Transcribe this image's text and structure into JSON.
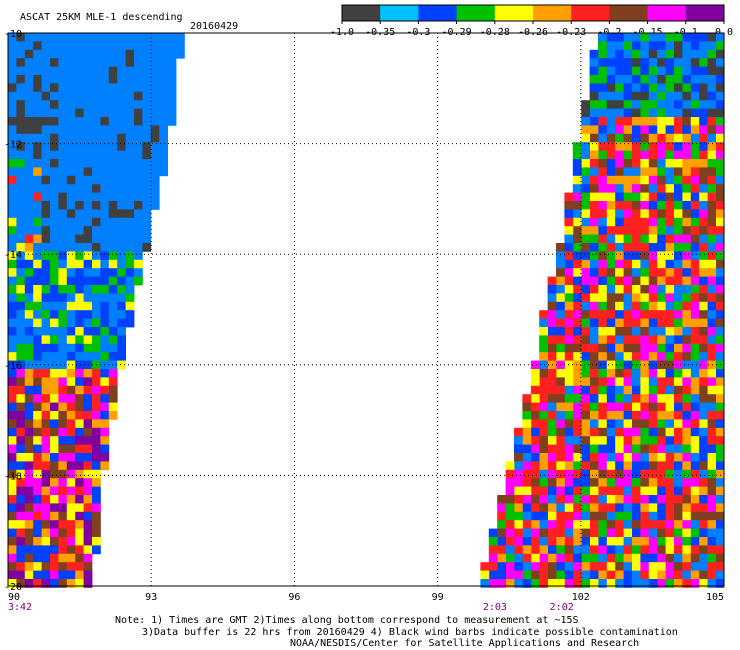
{
  "header": {
    "title": "ASCAT 25KM MLE-1 descending",
    "date": "20160429"
  },
  "legend": {
    "colors": [
      "#404040",
      "#00c0ff",
      "#0040ff",
      "#00c000",
      "#ffff00",
      "#ffa000",
      "#ff2020",
      "#804020",
      "#ff00ff",
      "#8000a0"
    ],
    "tick_labels": [
      "-1.0",
      "-0.35",
      "-0.3",
      "-0.29",
      "-0.28",
      "-0.26",
      "-0.23",
      "-0.2",
      "-0.15",
      "-0.1",
      "0.0"
    ]
  },
  "map": {
    "lon_labels": [
      "90",
      "93",
      "96",
      "99",
      "102",
      "105"
    ],
    "lat_labels": [
      "-10",
      "-12",
      "-14",
      "-16",
      "-18",
      "-20"
    ],
    "time_labels": [
      {
        "text": "3:42",
        "lon": 90.0
      },
      {
        "text": "2:03",
        "lon": 100.2
      },
      {
        "text": "2:02",
        "lon": 101.6
      }
    ],
    "lon_range": [
      90,
      105
    ],
    "lat_range": [
      -20,
      -10
    ],
    "grid": true,
    "swaths": [
      {
        "name": "west",
        "lon_min": 90,
        "lat_edge": [
          [
            -10,
            93.6
          ],
          [
            -11,
            93.4
          ],
          [
            -12,
            93.3
          ],
          [
            -13,
            93.0
          ],
          [
            -14,
            92.8
          ],
          [
            -15,
            92.5
          ],
          [
            -16,
            92.3
          ],
          [
            -17,
            92.1
          ],
          [
            -18,
            91.9
          ],
          [
            -19,
            91.8
          ],
          [
            -20,
            91.7
          ]
        ]
      },
      {
        "name": "east",
        "lon_max": 105,
        "lat_edge": [
          [
            -10,
            102.4
          ],
          [
            -11,
            102.2
          ],
          [
            -12,
            102.0
          ],
          [
            -13,
            101.8
          ],
          [
            -14,
            101.6
          ],
          [
            -15,
            101.3
          ],
          [
            -16,
            101.1
          ],
          [
            -17,
            100.8
          ],
          [
            -18,
            100.5
          ],
          [
            -19,
            100.2
          ],
          [
            -20,
            99.9
          ]
        ]
      }
    ]
  },
  "notes": {
    "line1": "Note: 1) Times are GMT 2)Times along bottom correspond to measurement at ~15S",
    "line2": "3)Data buffer is 22 hrs from 20160429 4) Black wind barbs indicate possible contamination",
    "line3": "NOAA/NESDIS/Center for Satellite Applications and Research"
  }
}
